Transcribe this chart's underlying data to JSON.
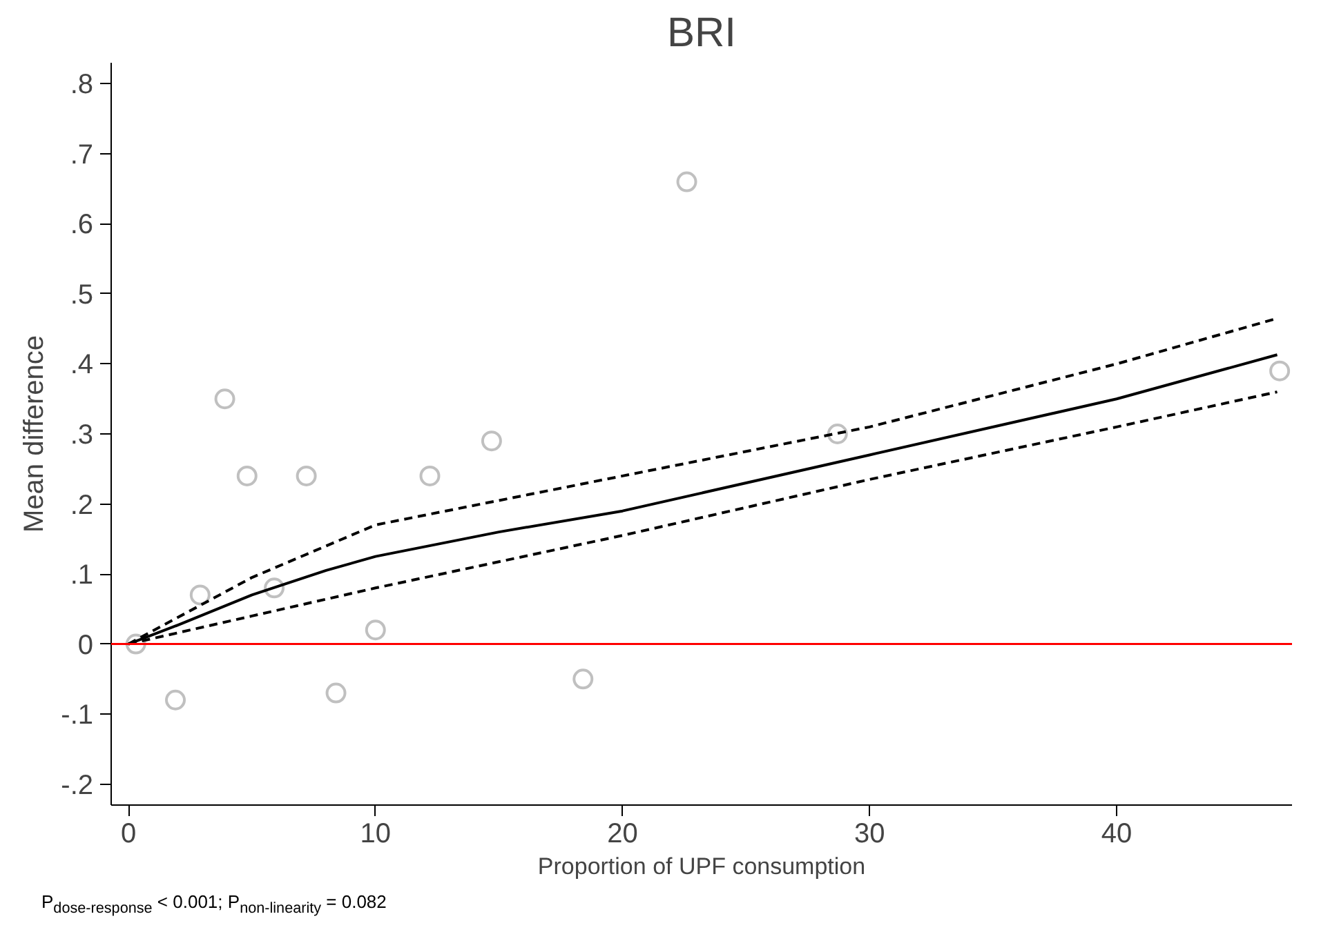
{
  "chart_data": {
    "type": "scatter",
    "title": "BRI",
    "xlabel": "Proportion of UPF consumption",
    "ylabel": "Mean difference",
    "xlim": [
      -0.7,
      47.1
    ],
    "ylim": [
      -0.23,
      0.83
    ],
    "xticks": [
      0,
      10,
      20,
      30,
      40
    ],
    "yticks": [
      {
        "value": -0.2,
        "label": "-.2"
      },
      {
        "value": -0.1,
        "label": "-.1"
      },
      0,
      {
        "value": 0.1,
        "label": ".1"
      },
      {
        "value": 0.2,
        "label": ".2"
      },
      {
        "value": 0.3,
        "label": ".3"
      },
      {
        "value": 0.4,
        "label": ".4"
      },
      {
        "value": 0.5,
        "label": ".5"
      },
      {
        "value": 0.6,
        "label": ".6"
      },
      {
        "value": 0.7,
        "label": ".7"
      },
      {
        "value": 0.8,
        "label": ".8"
      }
    ],
    "grid": false,
    "ref_lines": [
      {
        "axis": "y",
        "value": 0,
        "color": "#ff0000",
        "line_style": "solid"
      }
    ],
    "series": [
      {
        "marker": "circle",
        "color": "#c0c0c0",
        "x": [
          0.3,
          1.9,
          2.9,
          3.9,
          4.8,
          5.9,
          7.2,
          8.4,
          10,
          12.2,
          14.7,
          18.4,
          22.6,
          28.7,
          46.6
        ],
        "values": [
          0,
          -0.08,
          0.07,
          0.35,
          0.24,
          0.08,
          0.24,
          -0.07,
          0.02,
          0.24,
          0.29,
          -0.05,
          0.66,
          0.3,
          0.39
        ]
      },
      {
        "type": "line",
        "line_style": "solid",
        "color": "#000000",
        "x": [
          0,
          2,
          5,
          8,
          10,
          15,
          20,
          30,
          40,
          46.5
        ],
        "values": [
          0,
          0.027,
          0.07,
          0.105,
          0.125,
          0.16,
          0.19,
          0.27,
          0.35,
          0.413
        ]
      },
      {
        "type": "line",
        "line_style": "dashed",
        "color": "#000000",
        "x": [
          0,
          5,
          10,
          15,
          20,
          30,
          40,
          46.5
        ],
        "values": [
          0,
          0.095,
          0.17,
          0.205,
          0.24,
          0.31,
          0.4,
          0.465
        ]
      },
      {
        "type": "line",
        "line_style": "dashed",
        "color": "#000000",
        "x": [
          0,
          5,
          10,
          20,
          30,
          40,
          46.5
        ],
        "values": [
          0,
          0.04,
          0.08,
          0.155,
          0.235,
          0.31,
          0.36
        ]
      }
    ],
    "annotations": [
      "P$_{dose-response}$ < 0.001; P$_{non-linearity}$ = 0.082"
    ]
  }
}
